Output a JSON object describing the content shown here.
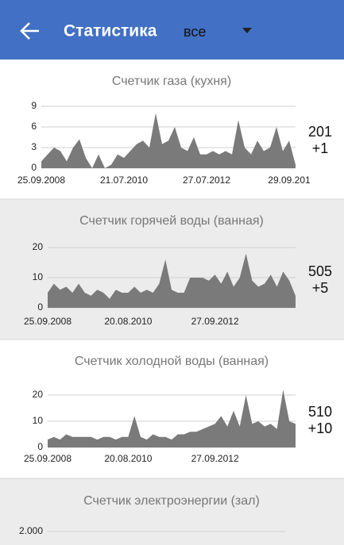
{
  "header": {
    "title": "Статистика",
    "filter": "все"
  },
  "chart_data": [
    {
      "type": "area",
      "title": "Счетчик газа (кухня)",
      "color": "#7a7a7a",
      "grid": true,
      "ylim": [
        0,
        9
      ],
      "yticks": [
        0,
        3,
        6,
        9
      ],
      "categories": [
        "25.09.2008",
        null,
        null,
        null,
        null,
        null,
        null,
        null,
        null,
        null,
        null,
        null,
        null,
        "21.07.2010",
        null,
        null,
        null,
        null,
        null,
        null,
        null,
        null,
        null,
        null,
        null,
        null,
        "27.07.2012",
        null,
        null,
        null,
        null,
        null,
        null,
        null,
        null,
        null,
        null,
        null,
        null,
        "29.09.201",
        null
      ],
      "values": [
        1,
        2,
        3,
        2.5,
        1,
        3,
        4.2,
        1.5,
        0,
        2,
        0,
        0.5,
        2,
        1.5,
        2.5,
        3.5,
        4,
        3,
        8,
        3.5,
        4,
        6,
        3,
        2.5,
        4.5,
        2,
        2,
        2.5,
        2,
        2.5,
        2,
        7,
        3,
        2,
        4,
        2.5,
        3,
        6,
        2.5,
        4,
        0.5
      ],
      "total": 201,
      "delta": "+1"
    },
    {
      "type": "area",
      "title": "Счетчик горячей воды (ванная)",
      "color": "#7a7a7a",
      "grid": true,
      "ylim": [
        0,
        20
      ],
      "yticks": [
        0,
        10,
        20
      ],
      "categories": [
        "25.09.2008",
        null,
        null,
        null,
        null,
        null,
        null,
        null,
        null,
        null,
        null,
        null,
        null,
        "20.08.2010",
        null,
        null,
        null,
        null,
        null,
        null,
        null,
        null,
        null,
        null,
        null,
        null,
        null,
        "27.09.2012",
        null,
        null,
        null,
        null,
        null,
        null,
        null,
        null,
        null,
        null,
        null,
        null,
        null
      ],
      "values": [
        5,
        8,
        6,
        7,
        5,
        8,
        5,
        4,
        6,
        5,
        3,
        6,
        5,
        5,
        7,
        5,
        6,
        5,
        8,
        16,
        6,
        5,
        5,
        10,
        10,
        10,
        9,
        11,
        8,
        12,
        7,
        10,
        18,
        9,
        7,
        8,
        11,
        7,
        12,
        9,
        4
      ],
      "total": 505,
      "delta": "+5"
    },
    {
      "type": "area",
      "title": "Счетчик холодной воды (ванная)",
      "color": "#7a7a7a",
      "grid": true,
      "ylim": [
        0,
        20
      ],
      "yticks": [
        0,
        10,
        20
      ],
      "categories": [
        "25.09.2008",
        null,
        null,
        null,
        null,
        null,
        null,
        null,
        null,
        null,
        null,
        null,
        null,
        "20.08.2010",
        null,
        null,
        null,
        null,
        null,
        null,
        null,
        null,
        null,
        null,
        null,
        null,
        null,
        "27.09.2012",
        null,
        null,
        null,
        null,
        null,
        null,
        null,
        null,
        null,
        null,
        null,
        null,
        null
      ],
      "values": [
        3,
        4,
        3,
        5,
        4,
        4,
        4,
        4,
        3,
        4,
        4,
        3,
        4,
        4,
        12,
        4,
        3,
        5,
        4,
        4,
        3,
        5,
        5,
        6,
        6,
        7,
        8,
        9,
        12,
        8,
        14,
        8,
        20,
        9,
        10,
        8,
        9,
        7,
        22,
        10,
        9
      ],
      "total": 510,
      "delta": "+10"
    },
    {
      "type": "area",
      "title": "Счетчик электроэнергии (зал)",
      "color": "#7a7a7a",
      "grid": true,
      "ylim": [
        0,
        2000
      ],
      "yticks": [
        {
          "value": 2000,
          "label": "2.000"
        }
      ]
    }
  ]
}
